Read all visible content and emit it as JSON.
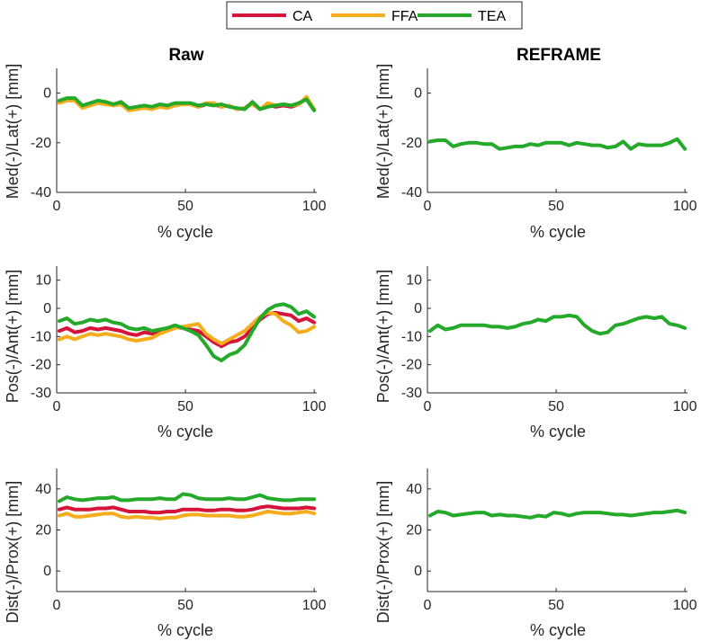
{
  "legend": {
    "entries": [
      {
        "label": "CA",
        "color": "#d6133a"
      },
      {
        "label": "FFA",
        "color": "#f5ad1e"
      },
      {
        "label": "TEA",
        "color": "#24a92a"
      }
    ]
  },
  "columns": {
    "left_title": "Raw",
    "right_title": "REFRAME"
  },
  "chart_data": [
    {
      "type": "line",
      "id": "raw-ml",
      "column": "Raw",
      "row": 0,
      "xlabel": "% cycle",
      "ylabel": "Med(-)/Lat(+) [mm]",
      "xlim": [
        0,
        101
      ],
      "ylim": [
        -40,
        10
      ],
      "xticks": [
        0,
        50,
        100
      ],
      "yticks": [
        -40,
        -20,
        0
      ],
      "x": [
        1,
        4,
        7,
        10,
        13,
        16,
        19,
        22,
        25,
        28,
        31,
        34,
        37,
        40,
        43,
        46,
        49,
        52,
        55,
        58,
        61,
        64,
        67,
        70,
        73,
        76,
        79,
        82,
        85,
        88,
        91,
        94,
        97,
        100
      ],
      "series": [
        {
          "name": "CA",
          "values": [
            -3.5,
            -2.5,
            -2.5,
            -5.5,
            -4.5,
            -3.5,
            -4,
            -4.5,
            -4,
            -6.5,
            -6,
            -5.5,
            -6,
            -5,
            -5.5,
            -4.5,
            -4.5,
            -4.5,
            -5.5,
            -4.5,
            -4.5,
            -5.5,
            -5,
            -6.5,
            -6,
            -4,
            -6.5,
            -4.5,
            -5.5,
            -5,
            -5.5,
            -4.5,
            -2,
            -6.5
          ]
        },
        {
          "name": "FFA",
          "values": [
            -4,
            -3,
            -3,
            -6,
            -5,
            -4,
            -4.5,
            -5,
            -4.5,
            -7,
            -6.5,
            -6,
            -6.5,
            -5.5,
            -6,
            -5,
            -4.5,
            -4.5,
            -5.5,
            -4,
            -4,
            -5.5,
            -5,
            -6.5,
            -6,
            -4.5,
            -6.5,
            -4,
            -5,
            -4.5,
            -5,
            -4.5,
            -1.5,
            -6.5
          ]
        },
        {
          "name": "TEA",
          "values": [
            -3,
            -2,
            -2,
            -5,
            -4,
            -3,
            -3.5,
            -4.5,
            -3.5,
            -6,
            -5.5,
            -5,
            -5.5,
            -4.5,
            -5,
            -4,
            -4,
            -4,
            -5,
            -4.5,
            -5,
            -4.5,
            -5.5,
            -6,
            -6.5,
            -3.5,
            -6.5,
            -5.5,
            -5,
            -4.5,
            -5,
            -4,
            -2.5,
            -7
          ]
        }
      ]
    },
    {
      "type": "line",
      "id": "reframe-ml",
      "column": "REFRAME",
      "row": 0,
      "xlabel": "% cycle",
      "ylabel": "Med(-)/Lat(+) [mm]",
      "xlim": [
        0,
        101
      ],
      "ylim": [
        -40,
        10
      ],
      "xticks": [
        0,
        50,
        100
      ],
      "yticks": [
        -40,
        -20,
        0
      ],
      "x": [
        1,
        4,
        7,
        10,
        13,
        16,
        19,
        22,
        25,
        28,
        31,
        34,
        37,
        40,
        43,
        46,
        49,
        52,
        55,
        58,
        61,
        64,
        67,
        70,
        73,
        76,
        79,
        82,
        85,
        88,
        91,
        94,
        97,
        100
      ],
      "series": [
        {
          "name": "TEA",
          "values": [
            -19.5,
            -19,
            -19,
            -21.5,
            -20.5,
            -20,
            -20,
            -20.5,
            -20.5,
            -22.5,
            -22,
            -21.5,
            -21.5,
            -20.5,
            -21,
            -20,
            -20,
            -20,
            -21,
            -20,
            -20.5,
            -21,
            -21,
            -22,
            -21.5,
            -19.5,
            -22.5,
            -20.5,
            -21,
            -21,
            -21,
            -20,
            -18.5,
            -22.5
          ]
        }
      ]
    },
    {
      "type": "line",
      "id": "raw-pa",
      "column": "Raw",
      "row": 1,
      "xlabel": "% cycle",
      "ylabel": "Pos(-)/Ant(+) [mm]",
      "xlim": [
        0,
        101
      ],
      "ylim": [
        -30,
        15
      ],
      "xticks": [
        0,
        50,
        100
      ],
      "yticks": [
        -30,
        -20,
        -10,
        0,
        10
      ],
      "x": [
        1,
        4,
        7,
        10,
        13,
        16,
        19,
        22,
        25,
        28,
        31,
        34,
        37,
        40,
        43,
        46,
        49,
        52,
        55,
        58,
        61,
        64,
        67,
        70,
        73,
        76,
        79,
        82,
        85,
        88,
        91,
        94,
        97,
        100
      ],
      "series": [
        {
          "name": "CA",
          "values": [
            -8,
            -7,
            -8.5,
            -8,
            -7,
            -7.5,
            -7,
            -7.5,
            -8,
            -9,
            -9.5,
            -8.5,
            -9,
            -8,
            -7.5,
            -6.5,
            -7,
            -7.5,
            -8,
            -10,
            -12,
            -13.5,
            -12,
            -11.5,
            -10,
            -7,
            -4,
            -2,
            -1.5,
            -2,
            -2.5,
            -4.5,
            -3.5,
            -5
          ]
        },
        {
          "name": "FFA",
          "values": [
            -11,
            -10,
            -11,
            -10,
            -9,
            -9.5,
            -9,
            -9.5,
            -10,
            -11,
            -11.5,
            -11,
            -10.5,
            -9,
            -8,
            -7,
            -6.5,
            -6,
            -5.5,
            -9,
            -11,
            -12.5,
            -11,
            -9.5,
            -8,
            -5.5,
            -3,
            -1.5,
            -2,
            -4.5,
            -6,
            -8.5,
            -8,
            -6.5
          ]
        },
        {
          "name": "TEA",
          "values": [
            -4.5,
            -3.5,
            -5.5,
            -5,
            -4,
            -4.5,
            -4,
            -5,
            -5.5,
            -7,
            -7.5,
            -7,
            -8,
            -7.5,
            -7,
            -6,
            -7,
            -8,
            -9.5,
            -13,
            -17,
            -18.5,
            -16.5,
            -15.5,
            -13,
            -8,
            -3.5,
            -0.5,
            1,
            1.5,
            0.5,
            -2,
            -1,
            -3
          ]
        }
      ]
    },
    {
      "type": "line",
      "id": "reframe-pa",
      "column": "REFRAME",
      "row": 1,
      "xlabel": "% cycle",
      "ylabel": "Pos(-)/Ant(+) [mm]",
      "xlim": [
        0,
        101
      ],
      "ylim": [
        -30,
        15
      ],
      "xticks": [
        0,
        50,
        100
      ],
      "yticks": [
        -30,
        -20,
        -10,
        0,
        10
      ],
      "x": [
        1,
        4,
        7,
        10,
        13,
        16,
        19,
        22,
        25,
        28,
        31,
        34,
        37,
        40,
        43,
        46,
        49,
        52,
        55,
        58,
        61,
        64,
        67,
        70,
        73,
        76,
        79,
        82,
        85,
        88,
        91,
        94,
        97,
        100
      ],
      "series": [
        {
          "name": "TEA",
          "values": [
            -8,
            -6,
            -7.5,
            -7,
            -6,
            -6,
            -6,
            -6,
            -6.5,
            -6.5,
            -7,
            -6.5,
            -5.5,
            -5,
            -4,
            -4.5,
            -3,
            -3,
            -2.5,
            -3,
            -6,
            -8,
            -9,
            -8.5,
            -6,
            -5.5,
            -4.5,
            -3.5,
            -3,
            -3.5,
            -3,
            -5.5,
            -6,
            -7
          ]
        }
      ]
    },
    {
      "type": "line",
      "id": "raw-dp",
      "column": "Raw",
      "row": 2,
      "xlabel": "% cycle",
      "ylabel": "Dist(-)/Prox(+) [mm]",
      "xlim": [
        0,
        101
      ],
      "ylim": [
        -10,
        50
      ],
      "xticks": [
        0,
        50,
        100
      ],
      "yticks": [
        0,
        20,
        40
      ],
      "x": [
        1,
        4,
        7,
        10,
        13,
        16,
        19,
        22,
        25,
        28,
        31,
        34,
        37,
        40,
        43,
        46,
        49,
        52,
        55,
        58,
        61,
        64,
        67,
        70,
        73,
        76,
        79,
        82,
        85,
        88,
        91,
        94,
        97,
        100
      ],
      "series": [
        {
          "name": "CA",
          "values": [
            30,
            31,
            30,
            30,
            30,
            30.5,
            30.5,
            31,
            30,
            29,
            29,
            29,
            28.5,
            28.5,
            29,
            29,
            30,
            30,
            30,
            29.5,
            29.5,
            30,
            30,
            29.5,
            29.5,
            30,
            31,
            31.5,
            31,
            30.5,
            30.5,
            30.5,
            31,
            30.5
          ]
        },
        {
          "name": "FFA",
          "values": [
            27,
            28,
            26.5,
            26.5,
            27,
            27.5,
            28,
            28,
            26.5,
            26,
            26.5,
            26,
            26,
            25.5,
            26,
            26,
            27,
            27.5,
            27.5,
            27,
            27,
            27,
            27,
            26.5,
            26.5,
            27,
            28,
            29,
            28.5,
            28,
            28,
            28.5,
            29,
            28
          ]
        },
        {
          "name": "TEA",
          "values": [
            34,
            36,
            35,
            34.5,
            35,
            35.5,
            35.5,
            36,
            34.5,
            34.5,
            35,
            35,
            35,
            35.5,
            35,
            35,
            37.5,
            37,
            35.5,
            35,
            35,
            35,
            35.5,
            35,
            35,
            36,
            37,
            35.5,
            35,
            34.5,
            34.5,
            35,
            35,
            35
          ]
        }
      ]
    },
    {
      "type": "line",
      "id": "reframe-dp",
      "column": "REFRAME",
      "row": 2,
      "xlabel": "% cycle",
      "ylabel": "Dist(-)/Prox(+) [mm]",
      "xlim": [
        0,
        101
      ],
      "ylim": [
        -10,
        50
      ],
      "xticks": [
        0,
        50,
        100
      ],
      "yticks": [
        0,
        20,
        40
      ],
      "x": [
        1,
        4,
        7,
        10,
        13,
        16,
        19,
        22,
        25,
        28,
        31,
        34,
        37,
        40,
        43,
        46,
        49,
        52,
        55,
        58,
        61,
        64,
        67,
        70,
        73,
        76,
        79,
        82,
        85,
        88,
        91,
        94,
        97,
        100
      ],
      "series": [
        {
          "name": "TEA",
          "values": [
            27,
            29,
            28.5,
            27,
            27.5,
            28,
            28.5,
            28.5,
            27,
            27.5,
            27,
            27,
            26.5,
            26,
            27,
            26.5,
            28.5,
            28,
            27,
            28,
            28.5,
            28.5,
            28.5,
            28,
            27.5,
            27.5,
            27,
            27.5,
            28,
            28.5,
            28.5,
            29,
            29.5,
            28.5
          ]
        }
      ]
    }
  ]
}
